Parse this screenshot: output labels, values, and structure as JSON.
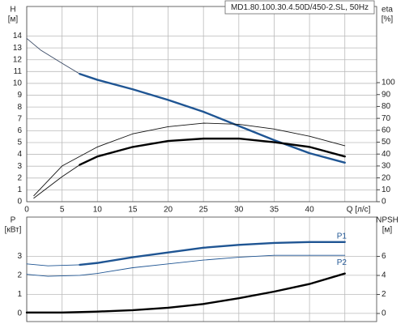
{
  "chart_data": [
    {
      "type": "line",
      "title": "MD1.80.100.30.4.50D/450-2.SL, 50Hz",
      "ylabel": [
        "H",
        "[м]"
      ],
      "y2label": [
        "eta",
        "[%]"
      ],
      "xlim": [
        0,
        49.5
      ],
      "xticks": [
        0,
        5,
        10,
        15,
        20,
        25,
        30,
        35,
        40,
        {
          "value": 45,
          "label": "Q [л/с]"
        }
      ],
      "ylim": [
        0,
        16.5
      ],
      "yticks": [
        0,
        1,
        2,
        3,
        4,
        5,
        6,
        7,
        8,
        9,
        10,
        11,
        12,
        13,
        14
      ],
      "y2lim": [
        0,
        164
      ],
      "y2ticks": [
        0,
        10,
        20,
        30,
        40,
        50,
        60,
        70,
        80,
        90,
        100
      ],
      "grid": true,
      "xtick_labels": true,
      "series": [
        {
          "color": "#3a4a66",
          "style": "thin",
          "x": [
            0,
            2,
            5,
            7.5
          ],
          "values": [
            13.8,
            12.8,
            11.7,
            10.8
          ]
        },
        {
          "color": "#1f5593",
          "style": "thick",
          "x": [
            7.5,
            10,
            15,
            20,
            25,
            30,
            35,
            40,
            45
          ],
          "values": [
            10.8,
            10.3,
            9.5,
            8.6,
            7.6,
            6.4,
            5.2,
            4.1,
            3.3
          ]
        },
        {
          "color": "#111111",
          "style": "thin",
          "axis": "y2",
          "x": [
            1,
            5,
            10,
            15,
            20,
            25,
            30,
            35,
            40,
            45
          ],
          "values": [
            5,
            30,
            46,
            57,
            63,
            66,
            65,
            61,
            55,
            47
          ]
        },
        {
          "color": "#111111",
          "style": "thin",
          "axis": "y2",
          "x": [
            1,
            3,
            5,
            7.5
          ],
          "values": [
            3,
            12,
            21,
            31
          ]
        },
        {
          "color": "#000000",
          "style": "thick",
          "axis": "y2",
          "x": [
            7.5,
            10,
            15,
            20,
            25,
            30,
            35,
            40,
            45
          ],
          "values": [
            31,
            38,
            46,
            51,
            53,
            53,
            50,
            46,
            38
          ]
        }
      ]
    },
    {
      "type": "line",
      "ylabel": [
        "P",
        "[кВт]"
      ],
      "y2label": [
        "NPSH",
        "[м]"
      ],
      "xlim": [
        0,
        49.5
      ],
      "xticks": [
        0,
        5,
        10,
        15,
        20,
        25,
        30,
        35,
        40,
        45
      ],
      "ylim": [
        -0.43,
        5.06
      ],
      "yticks": [
        0,
        1,
        2,
        3
      ],
      "y2lim": [
        -0.85,
        10.13
      ],
      "y2ticks": [
        0,
        2,
        4,
        6
      ],
      "grid": true,
      "xtick_labels": false,
      "series": [
        {
          "color": "#1f5593",
          "style": "thin",
          "x": [
            0,
            3,
            7.5
          ],
          "values": [
            2.6,
            2.5,
            2.55
          ]
        },
        {
          "name": "P1",
          "label_side": "above",
          "color": "#1f5593",
          "style": "thick",
          "x": [
            7.5,
            10,
            15,
            20,
            25,
            30,
            35,
            40,
            45
          ],
          "values": [
            2.55,
            2.65,
            2.95,
            3.2,
            3.45,
            3.6,
            3.7,
            3.75,
            3.75
          ]
        },
        {
          "name": "P2",
          "label_side": "below",
          "color": "#1f5593",
          "style": "thin",
          "x": [
            0,
            3,
            7.5,
            10,
            15,
            20,
            25,
            30,
            35,
            40,
            45
          ],
          "values": [
            2.05,
            1.95,
            2.0,
            2.1,
            2.4,
            2.6,
            2.8,
            2.95,
            3.05,
            3.05,
            3.05
          ]
        },
        {
          "color": "#000000",
          "style": "thick",
          "axis": "y2",
          "x": [
            0,
            5,
            10,
            15,
            20,
            25,
            30,
            35,
            40,
            45
          ],
          "values": [
            0.1,
            0.1,
            0.2,
            0.35,
            0.6,
            1.0,
            1.6,
            2.3,
            3.1,
            4.2
          ]
        }
      ]
    }
  ]
}
